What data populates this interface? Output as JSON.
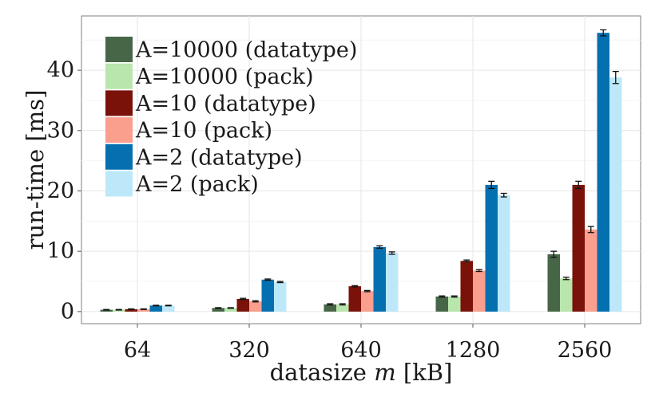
{
  "chart_data": {
    "type": "bar",
    "xlabel_prefix": "datasize ",
    "xlabel_var": "m",
    "xlabel_suffix": " [kB]",
    "ylabel": "run-time [ms]",
    "categories": [
      "64",
      "320",
      "640",
      "1280",
      "2560"
    ],
    "ylim": [
      -2,
      49
    ],
    "yticks": [
      0,
      10,
      20,
      30,
      40
    ],
    "grid": true,
    "legend_position": "top-left",
    "series": [
      {
        "name": "A=10000 (datatype)",
        "color": "#476647",
        "values": [
          0.3,
          0.6,
          1.2,
          2.5,
          9.5
        ],
        "errors": [
          0.05,
          0.05,
          0.1,
          0.1,
          0.5
        ]
      },
      {
        "name": "A=10000 (pack)",
        "color": "#b8e6ac",
        "values": [
          0.3,
          0.6,
          1.2,
          2.5,
          5.5
        ],
        "errors": [
          0.05,
          0.05,
          0.1,
          0.1,
          0.2
        ]
      },
      {
        "name": "A=10 (datatype)",
        "color": "#7a1209",
        "values": [
          0.4,
          2.1,
          4.2,
          8.4,
          21.0
        ],
        "errors": [
          0.05,
          0.1,
          0.1,
          0.15,
          0.6
        ]
      },
      {
        "name": "A=10 (pack)",
        "color": "#fa9e8e",
        "values": [
          0.4,
          1.7,
          3.4,
          6.8,
          13.6
        ],
        "errors": [
          0.05,
          0.1,
          0.1,
          0.15,
          0.5
        ]
      },
      {
        "name": "A=2 (datatype)",
        "color": "#0570b0",
        "values": [
          1.0,
          5.3,
          10.7,
          21.0,
          46.2
        ],
        "errors": [
          0.05,
          0.1,
          0.2,
          0.6,
          0.5
        ]
      },
      {
        "name": "A=2 (pack)",
        "color": "#bde8fa",
        "values": [
          1.0,
          4.9,
          9.7,
          19.3,
          38.8
        ],
        "errors": [
          0.05,
          0.1,
          0.2,
          0.3,
          1.0
        ]
      }
    ]
  }
}
